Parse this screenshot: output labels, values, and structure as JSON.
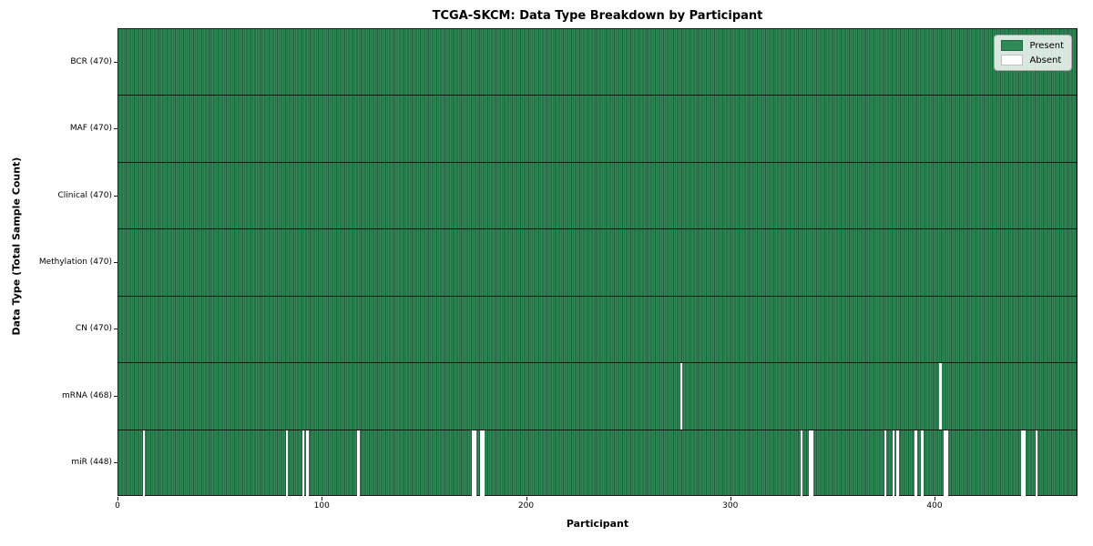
{
  "chart_data": {
    "type": "heatmap",
    "title": "TCGA-SKCM: Data Type Breakdown by Participant",
    "xlabel": "Participant",
    "ylabel": "Data Type (Total Sample Count)",
    "xlim": [
      0,
      470
    ],
    "n_participants": 470,
    "x_ticks": [
      0,
      100,
      200,
      300,
      400
    ],
    "grid": "row-separators and per-participant column edges",
    "legend_position": "upper right",
    "legend_items": [
      {
        "label": "Present",
        "color": "#2e8b57"
      },
      {
        "label": "Absent",
        "color": "#ffffff"
      }
    ],
    "rows": [
      {
        "label": "BCR (470)",
        "data_type": "BCR",
        "present_count": 470,
        "absent_participants": []
      },
      {
        "label": "MAF (470)",
        "data_type": "MAF",
        "present_count": 470,
        "absent_participants": []
      },
      {
        "label": "Clinical (470)",
        "data_type": "Clinical",
        "present_count": 470,
        "absent_participants": []
      },
      {
        "label": "Methylation (470)",
        "data_type": "Methylation",
        "present_count": 470,
        "absent_participants": []
      },
      {
        "label": "CN (470)",
        "data_type": "CN",
        "present_count": 470,
        "absent_participants": []
      },
      {
        "label": "mRNA (468)",
        "data_type": "mRNA",
        "present_count": 468,
        "absent_participants": [
          275,
          402
        ]
      },
      {
        "label": "miR (448)",
        "data_type": "miR",
        "present_count": 448,
        "absent_participants": [
          12,
          82,
          90,
          92,
          117,
          173,
          174,
          177,
          178,
          334,
          338,
          339,
          375,
          379,
          381,
          390,
          393,
          404,
          405,
          442,
          443,
          449
        ]
      }
    ],
    "colors": {
      "present": "#2e8b57",
      "present_edge": "#1f5c39",
      "absent": "#ffffff",
      "row_separator": "#1a1a1a",
      "spine": "#1a1a1a",
      "text": "#000000"
    }
  }
}
